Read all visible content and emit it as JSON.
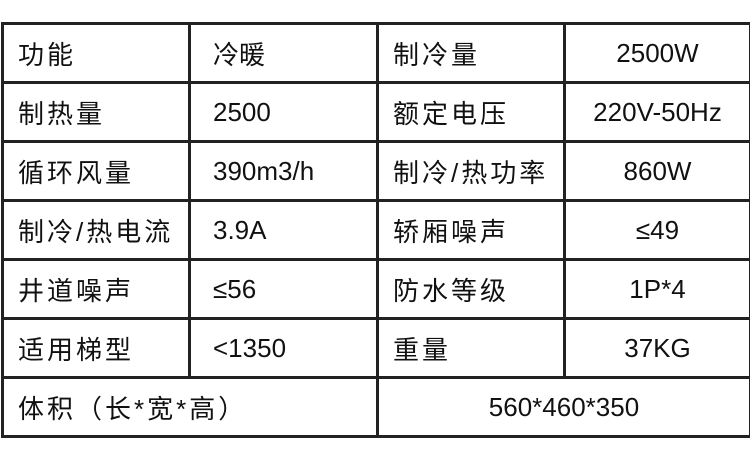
{
  "rows": [
    [
      "功能",
      "冷暖",
      "制冷量",
      "2500W"
    ],
    [
      "制热量",
      "2500",
      "额定电压",
      "220V-50Hz"
    ],
    [
      "循环风量",
      "390m3/h",
      "制冷/热功率",
      "860W"
    ],
    [
      "制冷/热电流",
      "3.9A",
      "轿厢噪声",
      "≤49"
    ],
    [
      "井道噪声",
      "≤56",
      "防水等级",
      "1P*4"
    ],
    [
      "适用梯型",
      "<1350",
      "重量",
      "37KG"
    ]
  ],
  "last_row": {
    "label": "体积（长*宽*高）",
    "value": "560*460*350"
  }
}
